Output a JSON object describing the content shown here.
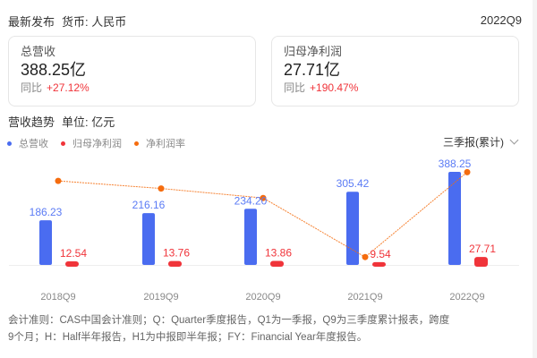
{
  "header": {
    "latest_label": "最新发布",
    "currency_label": "货币: 人民币",
    "period": "2022Q9"
  },
  "cards": [
    {
      "label": "总营收",
      "value": "388.25亿",
      "yoy_label": "同比",
      "yoy_value": "+27.12%"
    },
    {
      "label": "归母净利润",
      "value": "27.71亿",
      "yoy_label": "同比",
      "yoy_value": "+190.47%"
    }
  ],
  "trend": {
    "title": "营收趋势",
    "unit": "单位: 亿元",
    "period_select": "三季报(累计)",
    "legend": [
      {
        "label": "总营收",
        "color": "#4a6cf0"
      },
      {
        "label": "归母净利润",
        "color": "#f0343a"
      },
      {
        "label": "净利润率",
        "color": "#f56c0e"
      }
    ]
  },
  "chart_data": {
    "type": "bar",
    "title": "营收趋势",
    "ylabel": "亿元",
    "categories": [
      "2018Q9",
      "2019Q9",
      "2020Q9",
      "2021Q9",
      "2022Q9"
    ],
    "series": [
      {
        "name": "总营收",
        "type": "bar",
        "color": "#4a6cf0",
        "values": [
          186.23,
          216.16,
          234.2,
          305.42,
          388.25
        ]
      },
      {
        "name": "归母净利润",
        "type": "bar",
        "color": "#f0343a",
        "values": [
          12.54,
          13.76,
          13.86,
          9.54,
          27.71
        ]
      },
      {
        "name": "净利润率",
        "type": "line",
        "color": "#f56c0e",
        "values": [
          6.73,
          6.37,
          5.92,
          3.12,
          7.14
        ]
      }
    ],
    "labels": {
      "revenue": [
        "186.23",
        "216.16",
        "234.20",
        "305.42",
        "388.25"
      ],
      "profit": [
        "12.54",
        "13.76",
        "13.86",
        "9.54",
        "27.71"
      ]
    },
    "legend_position": "top-left",
    "grid": false
  },
  "footnote": {
    "line1": "会计准则：CAS中国会计准则；Q：Quarter季度报告，Q1为一季报，Q9为三季度累计报表，跨度",
    "line2": "9个月；H：Half半年报告，H1为中报即半年报；FY：Financial Year年度报告。"
  }
}
